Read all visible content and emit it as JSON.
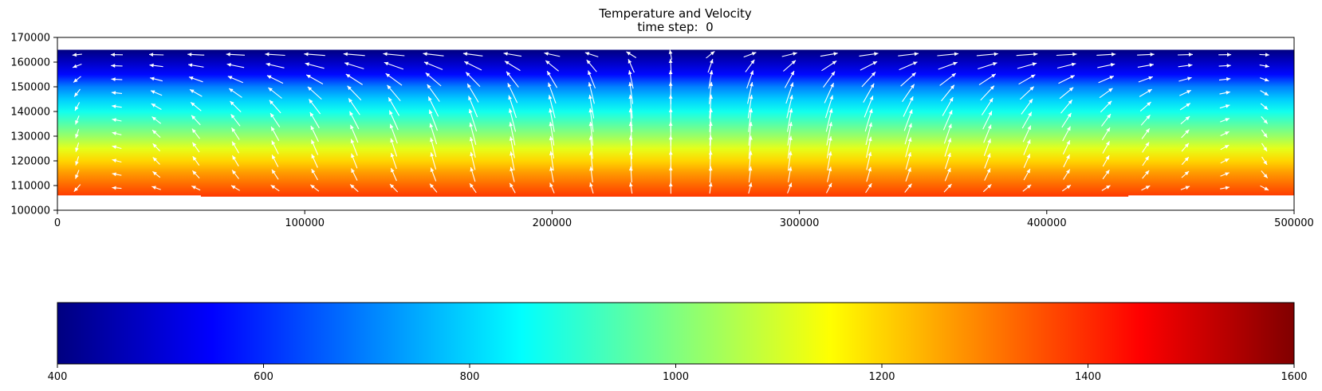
{
  "chart_data": [
    {
      "type": "heatmap",
      "title": "Temperature and Velocity",
      "subtitle_prefix": "time step:",
      "time_step": 0,
      "subtitle": "time step:  0",
      "xlabel": "",
      "ylabel": "",
      "xlim": [
        0,
        500000
      ],
      "ylim": [
        100000,
        170000
      ],
      "x_ticks": [
        0,
        100000,
        200000,
        300000,
        400000,
        500000
      ],
      "x_tick_labels": [
        "0",
        "100000",
        "200000",
        "300000",
        "400000",
        "500000"
      ],
      "y_ticks": [
        100000,
        110000,
        120000,
        130000,
        140000,
        150000,
        160000,
        170000
      ],
      "y_tick_labels": [
        "100000",
        "110000",
        "120000",
        "130000",
        "140000",
        "150000",
        "160000",
        "170000"
      ],
      "domain_x": [
        0,
        500000
      ],
      "domain_top": 165000,
      "domain_bottom_side": 106000,
      "domain_bottom_center": 105500,
      "domain_step_x": [
        58000,
        433000
      ],
      "temperature_field": {
        "colormap": "jet",
        "clim": [
          400,
          1600
        ],
        "profile_y": [
          165000,
          160000,
          155000,
          150000,
          145000,
          140000,
          135000,
          130000,
          125000,
          120000,
          115000,
          110000,
          106000
        ],
        "profile_t": [
          400,
          480,
          560,
          700,
          790,
          870,
          950,
          1030,
          1120,
          1200,
          1270,
          1330,
          1380
        ]
      },
      "velocity_field": {
        "color": "#ffffff",
        "x": [
          8000,
          24000,
          40000,
          56000,
          72000,
          88000,
          104000,
          120000,
          136000,
          152000,
          168000,
          184000,
          200000,
          216000,
          232000,
          248000,
          264000,
          280000,
          296000,
          312000,
          328000,
          344000,
          360000,
          376000,
          392000,
          408000,
          424000,
          440000,
          456000,
          472000,
          488000
        ],
        "y": [
          109000,
          114500,
          120000,
          125500,
          131000,
          136500,
          142000,
          147500,
          153000,
          158500,
          163000
        ],
        "pattern": "two counter-rotating convection cells centred at x = 250000, upwelling at the centre, horizontal outflow along the top surface"
      }
    },
    {
      "type": "colorbar",
      "colormap": "jet",
      "range": [
        400,
        1600
      ],
      "ticks": [
        400,
        600,
        800,
        1000,
        1200,
        1400,
        1600
      ],
      "tick_labels": [
        "400",
        "600",
        "800",
        "1000",
        "1200",
        "1400",
        "1600"
      ]
    }
  ]
}
